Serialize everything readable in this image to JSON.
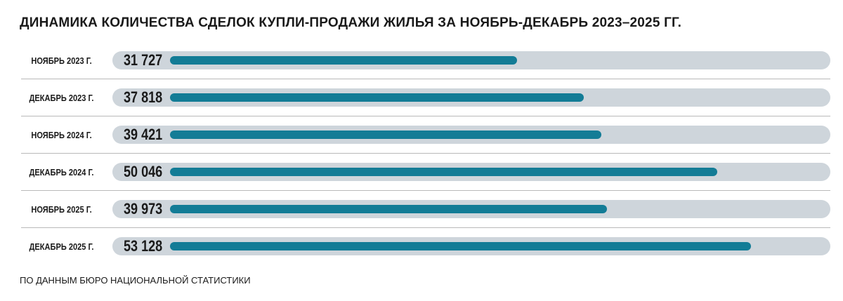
{
  "title": "ДИНАМИКА КОЛИЧЕСТВА СДЕЛОК КУПЛИ-ПРОДАЖИ ЖИЛЬЯ ЗА НОЯБРЬ-ДЕКАБРЬ 2023–2025 ГГ.",
  "source": "ПО ДАННЫМ БЮРО НАЦИОНАЛЬНОЙ СТАТИСТИКИ",
  "colors": {
    "bar": "#137c96",
    "track": "#ced5db"
  },
  "chart_data": {
    "type": "bar",
    "orientation": "horizontal",
    "title": "ДИНАМИКА КОЛИЧЕСТВА СДЕЛОК КУПЛИ-ПРОДАЖИ ЖИЛЬЯ ЗА НОЯБРЬ-ДЕКАБРЬ 2023–2025 ГГ.",
    "categories": [
      "НОЯБРЬ 2023 Г.",
      "ДЕКАБРЬ 2023 Г.",
      "НОЯБРЬ 2024 Г.",
      "ДЕКАБРЬ 2024 Г.",
      "НОЯБРЬ 2025 Г.",
      "ДЕКАБРЬ 2025 Г."
    ],
    "values": [
      31727,
      37818,
      39421,
      50046,
      39973,
      53128
    ],
    "value_labels": [
      "31 727",
      "37 818",
      "39 421",
      "50 046",
      "39 973",
      "53 128"
    ],
    "xlim": [
      0,
      60000
    ],
    "grid": false,
    "legend": "none"
  }
}
